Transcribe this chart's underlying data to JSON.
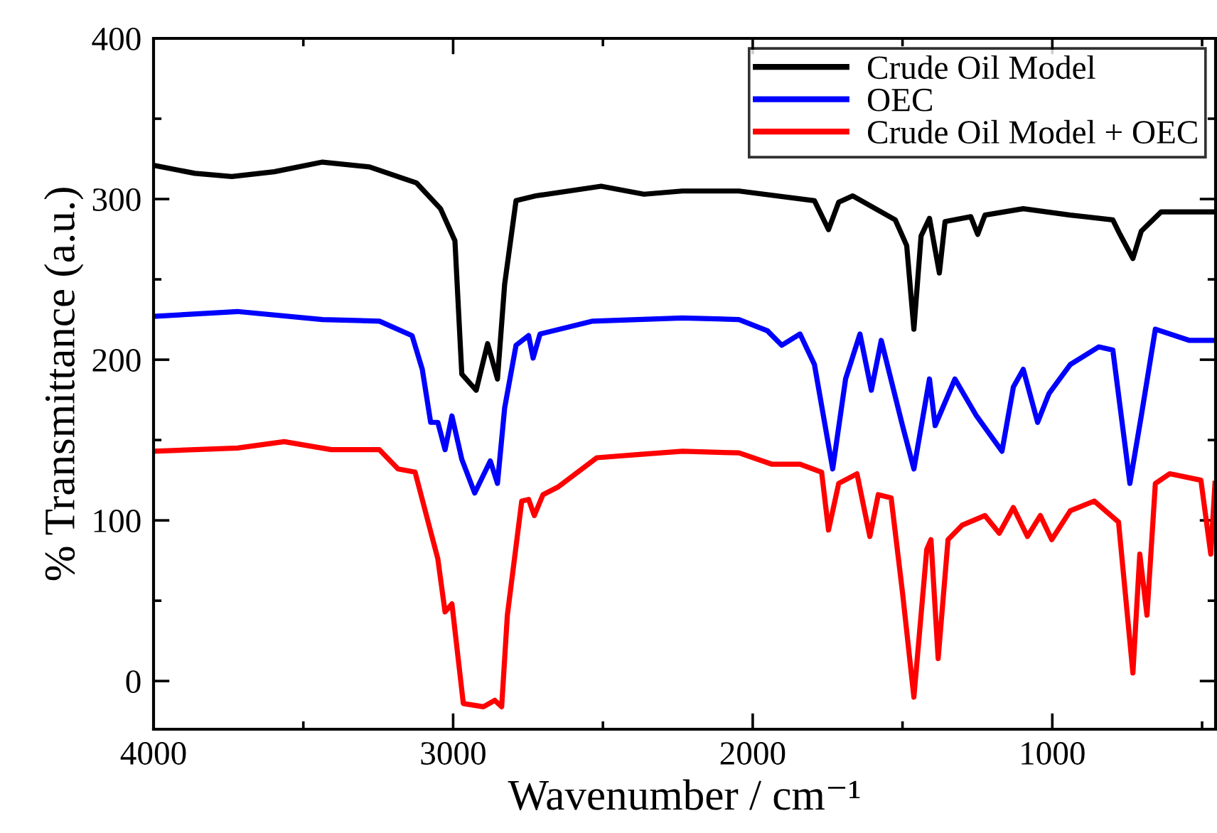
{
  "chart_data": {
    "type": "line",
    "xlabel": "Wavenumber / cm⁻¹",
    "ylabel": "% Transmittance (a.u.)",
    "xlim": [
      4000,
      455
    ],
    "ylim": [
      -30,
      400
    ],
    "xticks": [
      4000,
      {
        "value": 3500,
        "label": null
      },
      3000,
      {
        "value": 2500,
        "label": null
      },
      2000,
      {
        "value": 1500,
        "label": null
      },
      1000,
      {
        "value": 500,
        "label": null
      }
    ],
    "yticks": [
      0,
      {
        "value": 50,
        "label": null
      },
      100,
      {
        "value": 150,
        "label": null
      },
      200,
      {
        "value": 250,
        "label": null
      },
      300,
      {
        "value": 350,
        "label": null
      },
      400
    ],
    "grid": false,
    "legend": "top right",
    "marker": "none",
    "line_style": "solid",
    "series": [
      {
        "name": "Crude Oil Model",
        "color": "#000000",
        "x": [
          4000,
          3862,
          3739,
          3597,
          3436,
          3279,
          3122,
          3042,
          2994,
          2971,
          2923,
          2885,
          2852,
          2828,
          2790,
          2724,
          2506,
          2363,
          2235,
          2046,
          1794,
          1747,
          1713,
          1666,
          1524,
          1486,
          1462,
          1438,
          1410,
          1377,
          1358,
          1272,
          1249,
          1225,
          1097,
          940,
          798,
          774,
          731,
          703,
          637,
          466
        ],
        "values": [
          321,
          316,
          314,
          317,
          323,
          320,
          310,
          294,
          274,
          191,
          181,
          210,
          188,
          247,
          299,
          302,
          308,
          303,
          305,
          305,
          299,
          281,
          298,
          302,
          287,
          271,
          219,
          277,
          288,
          254,
          286,
          289,
          278,
          290,
          294,
          290,
          287,
          278,
          263,
          280,
          292,
          292
        ]
      },
      {
        "name": "OEC",
        "color": "#0000ff",
        "x": [
          4000,
          3720,
          3436,
          3246,
          3137,
          3103,
          3075,
          3051,
          3027,
          3004,
          2971,
          2928,
          2876,
          2852,
          2828,
          2790,
          2748,
          2733,
          2710,
          2534,
          2235,
          2046,
          1951,
          1903,
          1842,
          1794,
          1733,
          1690,
          1642,
          1604,
          1571,
          1500,
          1462,
          1410,
          1391,
          1325,
          1253,
          1168,
          1130,
          1097,
          1049,
          1011,
          940,
          845,
          798,
          741,
          703,
          656,
          542,
          466
        ],
        "values": [
          227,
          230,
          225,
          224,
          215,
          194,
          161,
          161,
          144,
          165,
          138,
          117,
          137,
          123,
          170,
          209,
          215,
          201,
          216,
          224,
          226,
          225,
          218,
          209,
          216,
          197,
          132,
          188,
          216,
          181,
          212,
          159,
          132,
          188,
          159,
          188,
          165,
          143,
          183,
          194,
          161,
          179,
          197,
          208,
          206,
          123,
          165,
          219,
          212,
          212
        ]
      },
      {
        "name": "Crude Oil Model + OEC",
        "color": "#ff0000",
        "x": [
          4000,
          3720,
          3564,
          3407,
          3246,
          3184,
          3127,
          3089,
          3051,
          3027,
          3004,
          2966,
          2899,
          2861,
          2838,
          2819,
          2771,
          2748,
          2729,
          2700,
          2648,
          2520,
          2378,
          2235,
          2046,
          1937,
          1842,
          1770,
          1747,
          1713,
          1652,
          1609,
          1581,
          1538,
          1500,
          1462,
          1419,
          1405,
          1381,
          1348,
          1301,
          1225,
          1177,
          1130,
          1083,
          1040,
          1002,
          940,
          860,
          779,
          731,
          708,
          684,
          656,
          608,
          504,
          471,
          457
        ],
        "values": [
          143,
          145,
          149,
          144,
          144,
          132,
          130,
          103,
          76,
          43,
          48,
          -14,
          -16,
          -12,
          -16,
          41,
          112,
          113,
          103,
          116,
          121,
          139,
          141,
          143,
          142,
          135,
          135,
          130,
          94,
          123,
          129,
          90,
          116,
          114,
          55,
          -10,
          82,
          88,
          14,
          88,
          97,
          103,
          92,
          108,
          90,
          103,
          88,
          106,
          112,
          99,
          5,
          79,
          41,
          123,
          129,
          125,
          79,
          123
        ]
      }
    ]
  }
}
